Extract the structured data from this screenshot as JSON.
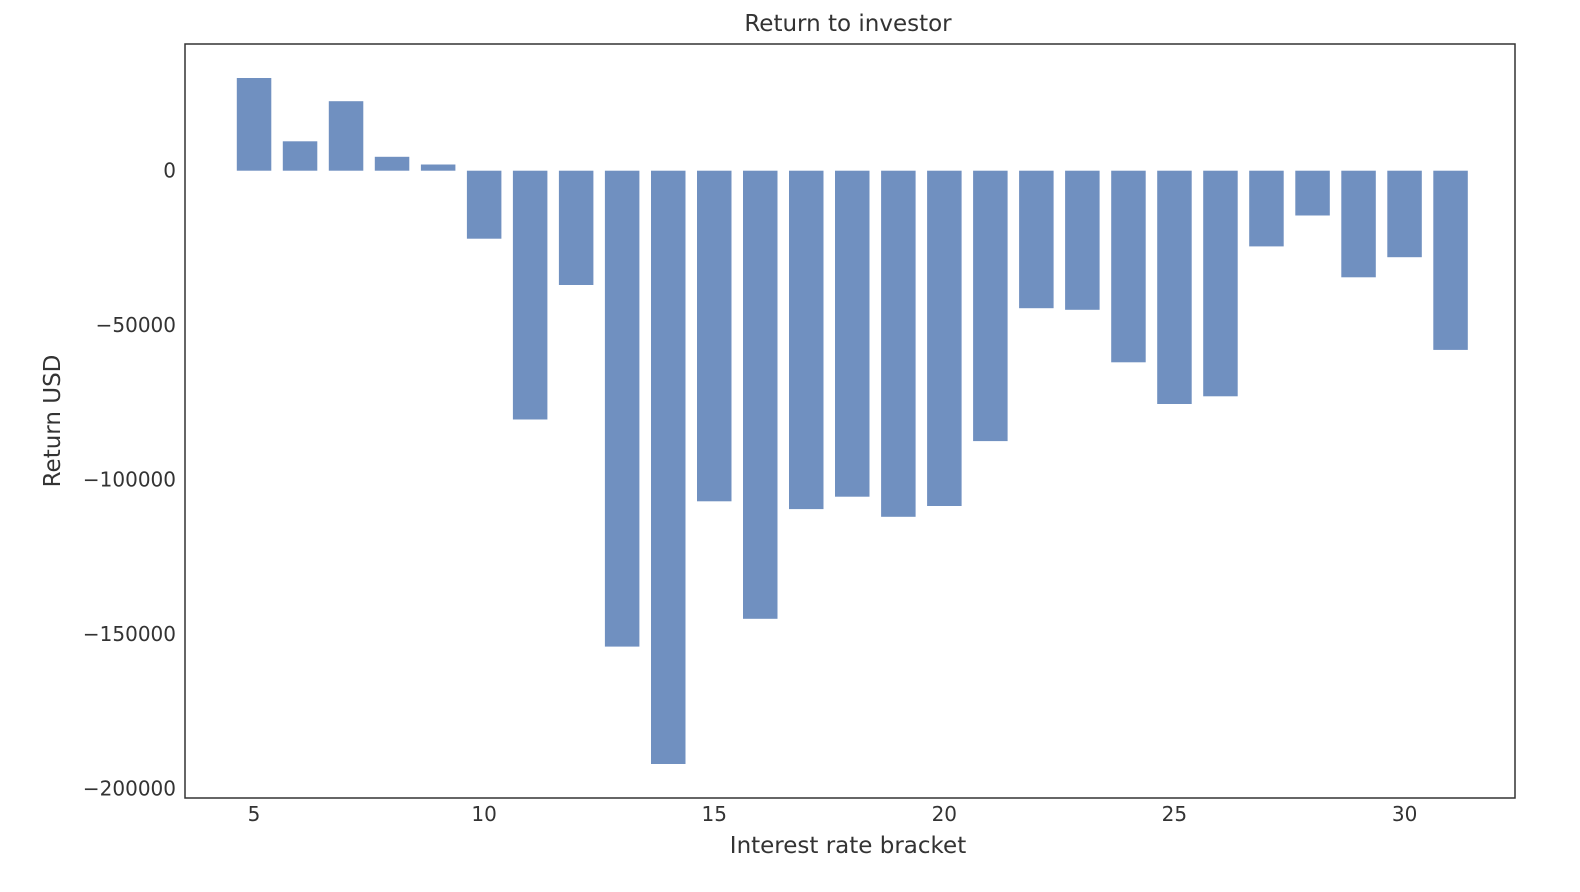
{
  "chart_data": {
    "type": "bar",
    "title": "Return to investor",
    "xlabel": "Interest rate bracket",
    "ylabel": "Return USD",
    "x": [
      5,
      6,
      7,
      8,
      9,
      10,
      11,
      12,
      13,
      14,
      15,
      16,
      17,
      18,
      19,
      20,
      21,
      22,
      23,
      24,
      25,
      26,
      27,
      28,
      29,
      30,
      31
    ],
    "values": [
      30000,
      9500,
      22500,
      4500,
      2000,
      -22000,
      -80500,
      -37000,
      -154000,
      -192000,
      -107000,
      -145000,
      -109500,
      -105500,
      -112000,
      -108500,
      -87500,
      -44500,
      -45000,
      -62000,
      -75500,
      -73000,
      -24500,
      -14500,
      -34500,
      -28000,
      -58000
    ],
    "xlim": [
      3.5,
      32.4
    ],
    "ylim": [
      -203000,
      41000
    ],
    "xticks": [
      5,
      10,
      15,
      20,
      25,
      30
    ],
    "yticks": [
      0,
      -50000,
      -100000,
      -150000,
      -200000
    ],
    "ytick_labels": [
      "0",
      "−50000",
      "−100000",
      "−150000",
      "−200000"
    ],
    "grid": false,
    "bar_color": "#7090c0"
  }
}
